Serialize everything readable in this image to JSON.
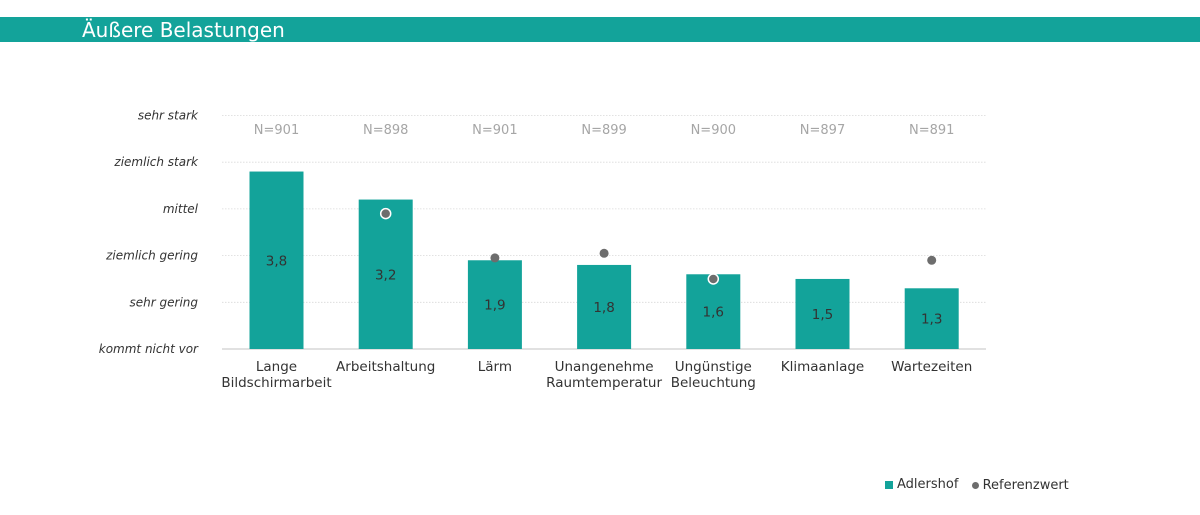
{
  "header": {
    "title": "Äußere Belastungen"
  },
  "colors": {
    "accent": "#13a39a",
    "reference": "#6d6d6d",
    "gridline": "#d9d9d9",
    "sample_text": "#a6a6a6"
  },
  "chart_data": {
    "type": "bar",
    "y_tick_labels": [
      "kommt nicht vor",
      "sehr gering",
      "ziemlich gering",
      "mittel",
      "ziemlich stark",
      "sehr stark"
    ],
    "ylim": [
      0,
      5
    ],
    "categories": [
      [
        "Lange",
        "Bildschirmarbeit"
      ],
      [
        "Arbeitshaltung"
      ],
      [
        "Lärm"
      ],
      [
        "Unangenehme",
        "Raumtemperatur"
      ],
      [
        "Ungünstige",
        "Beleuchtung"
      ],
      [
        "Klimaanlage"
      ],
      [
        "Wartezeiten"
      ]
    ],
    "sample_sizes": [
      "N=901",
      "N=898",
      "N=901",
      "N=899",
      "N=900",
      "N=897",
      "N=891"
    ],
    "series": [
      {
        "name": "Adlershof",
        "values": [
          3.8,
          3.2,
          1.9,
          1.8,
          1.6,
          1.5,
          1.3
        ],
        "value_labels": [
          "3,8",
          "3,2",
          "1,9",
          "1,8",
          "1,6",
          "1,5",
          "1,3"
        ]
      },
      {
        "name": "Referenzwert",
        "values": [
          null,
          2.9,
          1.95,
          2.05,
          1.5,
          null,
          1.9
        ]
      }
    ],
    "grid": true,
    "legend_position": "bottom-right"
  }
}
